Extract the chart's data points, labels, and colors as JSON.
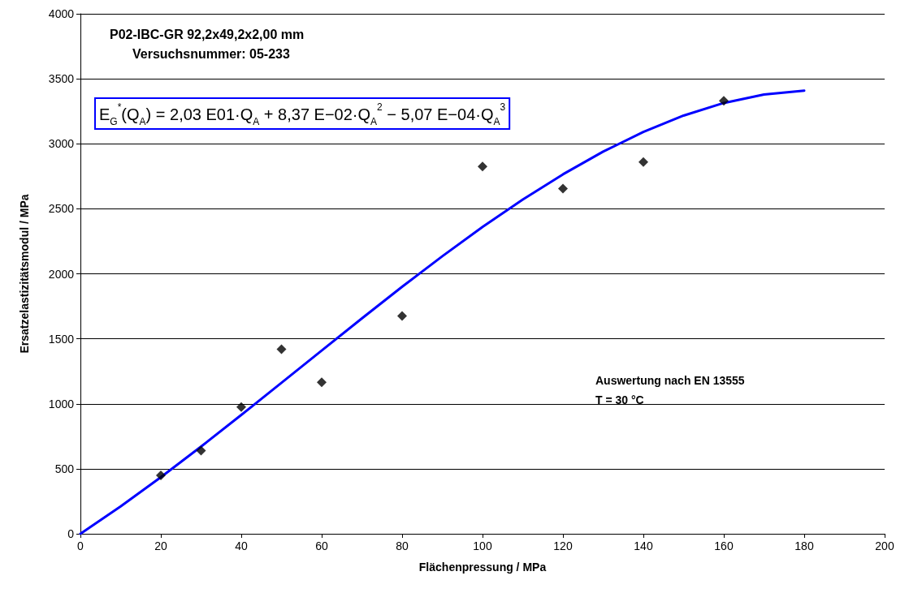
{
  "chart_data": {
    "type": "scatter",
    "title": "P02-IBC-GR 92,2x49,2x2,00 mm",
    "subtitle": "Versuchsnummer: 05-233",
    "xlabel": "Flächenpressung / MPa",
    "ylabel": "Ersatzelastizitätsmodul / MPa",
    "annotations": [
      "E$_{G}$$^{*}$(Q$_{A}$) = 2,03 E01·Q$_{A}$ + 8,37 E−02·Q$_{A}$$^{2}$ − 5,07 E−04·Q$_{A}$$^{3}$",
      "Auswertung nach EN 13555",
      "T = 30 °C"
    ],
    "series": [
      {
        "color": "#000000",
        "marker": "diamond",
        "x": [
          20,
          30,
          40,
          50,
          60,
          80,
          100,
          120,
          140,
          160
        ],
        "values": [
          450,
          640,
          975,
          1420,
          1165,
          1675,
          2825,
          2655,
          2860,
          3330
        ]
      },
      {
        "type": "line",
        "color": "#0000ff",
        "marker": "none",
        "line_style": "solid",
        "x": [
          0,
          10,
          20,
          30,
          40,
          50,
          60,
          70,
          80,
          90,
          100,
          110,
          120,
          130,
          140,
          150,
          160,
          170,
          180
        ],
        "values": [
          0,
          211,
          435,
          671,
          914,
          1161,
          1410,
          1657,
          1900,
          2135,
          2360,
          2571,
          2765,
          2940,
          3091,
          3217,
          3314,
          3379,
          3409
        ]
      }
    ],
    "xlim": [
      0,
      200
    ],
    "xticks": [
      0,
      20,
      40,
      60,
      80,
      100,
      120,
      140,
      160,
      180,
      200
    ],
    "ylim": [
      0,
      4000
    ],
    "yticks": [
      0,
      500,
      1000,
      1500,
      2000,
      2500,
      3000,
      3500,
      4000
    ],
    "grid": "y"
  }
}
